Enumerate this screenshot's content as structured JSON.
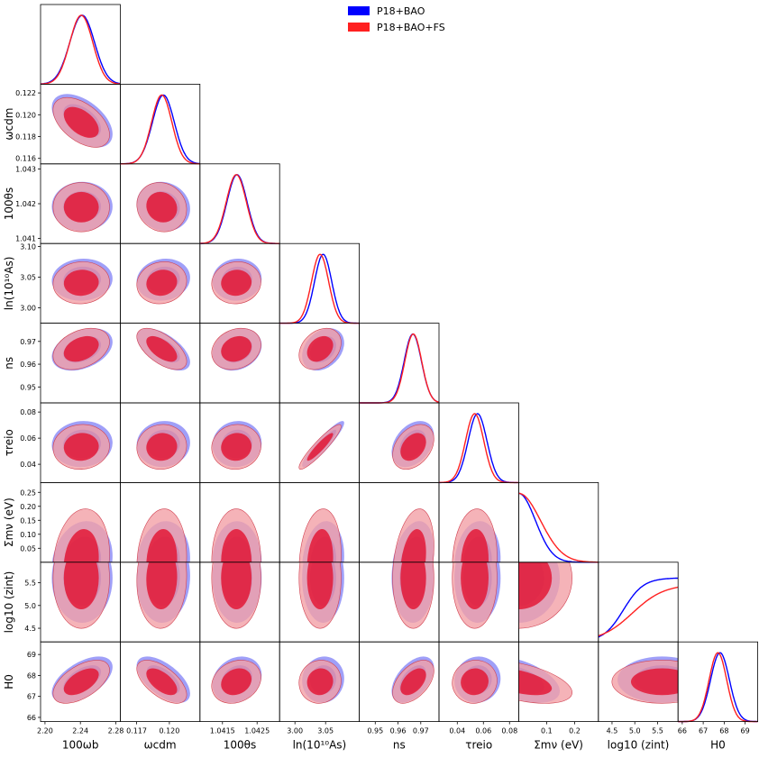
{
  "chart_data": {
    "type": "corner",
    "colors": {
      "P18+BAO": "#0000ff",
      "P18+BAO+FS": "#ff2020"
    },
    "legend": {
      "placement": "top-center",
      "entries": [
        "P18+BAO",
        "P18+BAO+FS"
      ]
    },
    "parameters": [
      {
        "key": "omega_b",
        "label": "100ωb",
        "sym": "ω",
        "sub": "b",
        "prefix": "100",
        "range": [
          2.195,
          2.285
        ],
        "xticks": [
          "2.20",
          "2.24",
          "2.28"
        ],
        "yticks": [],
        "mean": {
          "P18+BAO": 2.242,
          "P18+BAO+FS": 2.241
        },
        "sigma": {
          "P18+BAO": 0.014,
          "P18+BAO+FS": 0.013
        }
      },
      {
        "key": "omega_cdm",
        "label": "ωcdm",
        "sym": "ω",
        "sub": "cdm",
        "prefix": "",
        "range": [
          0.1155,
          0.1228
        ],
        "xticks": [
          "0.117",
          "0.120"
        ],
        "yticks": [
          "0.116",
          "0.118",
          "0.120",
          "0.122"
        ],
        "mean": {
          "P18+BAO": 0.11945,
          "P18+BAO+FS": 0.1193
        },
        "sigma": {
          "P18+BAO": 0.001,
          "P18+BAO+FS": 0.00093
        }
      },
      {
        "key": "theta_s",
        "label": "100θs",
        "sym": "θ",
        "sub": "s",
        "prefix": "100",
        "range": [
          1.04085,
          1.04315
        ],
        "xticks": [
          "1.0415",
          "1.0425"
        ],
        "yticks": [
          "1.041",
          "1.042",
          "1.043"
        ],
        "mean": {
          "P18+BAO": 1.04192,
          "P18+BAO+FS": 1.0419
        },
        "sigma": {
          "P18+BAO": 0.00029,
          "P18+BAO+FS": 0.00029
        }
      },
      {
        "key": "ln10As",
        "label": "ln(10¹⁰As)",
        "sym": "A",
        "sub": "s",
        "prefix": "ln(10¹⁰",
        "range": [
          2.975,
          3.105
        ],
        "xticks": [
          "3.00",
          "3.05"
        ],
        "yticks": [
          "3.00",
          "3.05",
          "3.10"
        ],
        "mean": {
          "P18+BAO": 3.046,
          "P18+BAO+FS": 3.041
        },
        "sigma": {
          "P18+BAO": 0.014,
          "P18+BAO+FS": 0.014
        }
      },
      {
        "key": "n_s",
        "label": "ns",
        "sym": "n",
        "sub": "s",
        "prefix": "",
        "range": [
          0.943,
          0.978
        ],
        "xticks": [
          "0.95",
          "0.96",
          "0.97"
        ],
        "yticks": [
          "0.95",
          "0.96",
          "0.97"
        ],
        "mean": {
          "P18+BAO": 0.9665,
          "P18+BAO+FS": 0.9667
        },
        "sigma": {
          "P18+BAO": 0.0038,
          "P18+BAO+FS": 0.0037
        }
      },
      {
        "key": "tau_reio",
        "label": "τreio",
        "sym": "τ",
        "sub": "reio",
        "prefix": "",
        "range": [
          0.026,
          0.087
        ],
        "xticks": [
          "0.04",
          "0.06",
          "0.08"
        ],
        "yticks": [
          "0.04",
          "0.06",
          "0.08"
        ],
        "mean": {
          "P18+BAO": 0.0555,
          "P18+BAO+FS": 0.0533
        },
        "sigma": {
          "P18+BAO": 0.0072,
          "P18+BAO+FS": 0.007
        }
      },
      {
        "key": "Sigma_mnu",
        "label": "Σmν (eV)",
        "sym": "Σm",
        "sub": "ν",
        "prefix": "",
        "range": [
          0.0,
          0.285
        ],
        "xticks": [
          "0.1",
          "0.2"
        ],
        "yticks": [
          "0.05",
          "0.10",
          "0.15",
          "0.20",
          "0.25"
        ],
        "mean": {
          "P18+BAO": 0.0,
          "P18+BAO+FS": 0.0
        },
        "sigma": {
          "P18+BAO": 0.06,
          "P18+BAO+FS": 0.078
        }
      },
      {
        "key": "log10_zint",
        "label": "log10(zint)",
        "sym": "log",
        "sub": "10",
        "prefix": "",
        "range": [
          4.2,
          5.95
        ],
        "xticks": [
          "4.5",
          "5.0",
          "5.5"
        ],
        "yticks": [
          "4.5",
          "5.0",
          "5.5"
        ],
        "mean": {
          "P18+BAO": 5.6,
          "P18+BAO+FS": 5.6
        },
        "sigma": {
          "P18+BAO": 0.4,
          "P18+BAO+FS": 0.45
        }
      },
      {
        "key": "H0",
        "label": "H0",
        "sym": "H",
        "sub": "0",
        "prefix": "",
        "range": [
          65.8,
          69.6
        ],
        "xticks": [
          "66",
          "67",
          "68",
          "69"
        ],
        "yticks": [
          "66",
          "67",
          "68",
          "69"
        ],
        "mean": {
          "P18+BAO": 67.8,
          "P18+BAO+FS": 67.7
        },
        "sigma": {
          "P18+BAO": 0.45,
          "P18+BAO+FS": 0.42
        }
      }
    ],
    "correlations": [
      [
        0,
        1,
        -0.5
      ],
      [
        0,
        2,
        0.0
      ],
      [
        0,
        3,
        0.05
      ],
      [
        0,
        4,
        0.35
      ],
      [
        0,
        5,
        0.05
      ],
      [
        0,
        6,
        0.15
      ],
      [
        0,
        7,
        0.0
      ],
      [
        0,
        8,
        0.55
      ],
      [
        1,
        2,
        -0.1
      ],
      [
        1,
        3,
        0.1
      ],
      [
        1,
        4,
        -0.6
      ],
      [
        1,
        5,
        0.05
      ],
      [
        1,
        6,
        0.1
      ],
      [
        1,
        7,
        0.05
      ],
      [
        1,
        8,
        -0.6
      ],
      [
        2,
        3,
        0.05
      ],
      [
        2,
        4,
        0.2
      ],
      [
        2,
        5,
        0.05
      ],
      [
        2,
        6,
        0.0
      ],
      [
        2,
        7,
        0.0
      ],
      [
        2,
        8,
        0.2
      ],
      [
        3,
        4,
        0.3
      ],
      [
        3,
        5,
        0.92
      ],
      [
        3,
        6,
        0.15
      ],
      [
        3,
        7,
        0.0
      ],
      [
        3,
        8,
        0.05
      ],
      [
        4,
        5,
        0.35
      ],
      [
        4,
        6,
        0.3
      ],
      [
        4,
        7,
        0.0
      ],
      [
        4,
        8,
        0.5
      ],
      [
        5,
        6,
        0.1
      ],
      [
        5,
        7,
        0.0
      ],
      [
        5,
        8,
        0.05
      ],
      [
        6,
        7,
        0.0
      ],
      [
        6,
        8,
        -0.5
      ],
      [
        7,
        8,
        0.0
      ]
    ]
  },
  "labels": {
    "legend_1": "P18+BAO",
    "legend_2": "P18+BAO+FS",
    "x_omega_b": "100ωb",
    "x_omega_cdm": "ωcdm",
    "x_theta_s": "100θs",
    "x_ln10As": "ln(10¹⁰As)",
    "x_n_s": "ns",
    "x_tau_reio": "τreio",
    "x_Sigma_mnu": "Σmν (eV)",
    "x_log10_zint": "log10 (zint)",
    "x_H0": "H0"
  }
}
